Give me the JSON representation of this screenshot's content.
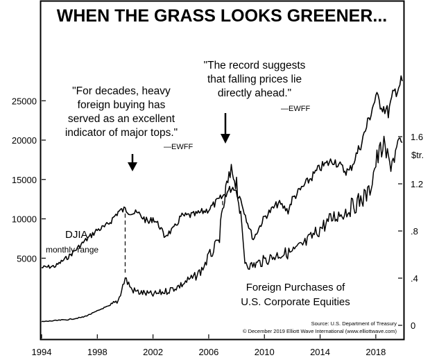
{
  "chart_data": {
    "type": "line",
    "title": "WHEN THE GRASS LOOKS GREENER...",
    "x_axis": {
      "ticks": [
        "1994",
        "1998",
        "2002",
        "2006",
        "2010",
        "2014",
        "2018"
      ],
      "range": [
        1994,
        2019.9
      ]
    },
    "y_left": {
      "ticks": [
        "5000",
        "10000",
        "15000",
        "20000",
        "25000"
      ],
      "range": [
        0,
        29000
      ]
    },
    "y_right": {
      "unit_label": "$tr.",
      "ticks": [
        "0",
        ".4",
        ".8",
        "1.2",
        "1.6"
      ],
      "range": [
        0,
        1.8
      ]
    },
    "series": [
      {
        "name": "DJIA monthly range",
        "axis": "left",
        "x": [
          1994.0,
          1995.0,
          1996.0,
          1997.0,
          1998.0,
          1998.6,
          1999.0,
          1999.5,
          2000.0,
          2000.5,
          2001.0,
          2001.7,
          2002.0,
          2002.5,
          2002.8,
          2003.5,
          2004.0,
          2005.0,
          2006.0,
          2007.0,
          2007.5,
          2007.8,
          2008.3,
          2008.8,
          2009.2,
          2010.0,
          2011.0,
          2011.7,
          2012.0,
          2013.0,
          2014.0,
          2015.0,
          2015.7,
          2016.1,
          2017.0,
          2018.0,
          2018.4,
          2018.9,
          2019.3,
          2019.9
        ],
        "y": [
          3800,
          4000,
          5300,
          7000,
          8600,
          9000,
          9800,
          10900,
          11200,
          10800,
          10600,
          9500,
          10100,
          9000,
          7800,
          8700,
          10300,
          10500,
          11200,
          12800,
          13700,
          14100,
          12500,
          9500,
          7400,
          10200,
          12000,
          11000,
          12500,
          14500,
          16500,
          17500,
          16200,
          16000,
          19800,
          25500,
          24500,
          23500,
          26000,
          27500
        ]
      },
      {
        "name": "Foreign Purchases of U.S. Corporate Equities",
        "axis": "right",
        "x": [
          1994.0,
          1995.0,
          1996.0,
          1997.0,
          1997.8,
          1998.5,
          1999.0,
          1999.5,
          2000.0,
          2000.5,
          2001.0,
          2002.0,
          2003.0,
          2004.0,
          2004.5,
          2005.0,
          2005.5,
          2006.0,
          2006.7,
          2007.0,
          2007.3,
          2007.7,
          2008.0,
          2008.3,
          2008.6,
          2009.0,
          2010.0,
          2011.0,
          2012.0,
          2013.0,
          2014.0,
          2015.0,
          2016.0,
          2017.0,
          2017.5,
          2018.0,
          2018.5,
          2019.0,
          2019.5,
          2019.9
        ],
        "y": [
          0.03,
          0.04,
          0.05,
          0.07,
          0.11,
          0.15,
          0.17,
          0.21,
          0.4,
          0.3,
          0.28,
          0.26,
          0.29,
          0.34,
          0.38,
          0.41,
          0.47,
          0.58,
          0.7,
          0.95,
          1.18,
          1.3,
          1.22,
          0.9,
          0.55,
          0.5,
          0.55,
          0.6,
          0.62,
          0.7,
          0.82,
          0.92,
          0.98,
          1.07,
          1.12,
          1.38,
          1.52,
          1.37,
          1.47,
          1.55
        ]
      }
    ],
    "markers": [
      2000.0,
      2007.0
    ],
    "annotations": {
      "quote1": [
        "\"For decades, heavy",
        "foreign buying has",
        "served as an excellent",
        "indicator of major tops.\""
      ],
      "quote1_attr": "—EWFF",
      "quote2": [
        "\"The record suggests",
        "that falling prices lie",
        "directly ahead.\""
      ],
      "quote2_attr": "—EWFF",
      "djia_label": "DJIA",
      "djia_sublabel": "monthly range",
      "foreign_label": [
        "Foreign Purchases of",
        "U.S. Corporate Equities"
      ],
      "source": "Source: U.S. Department of Treasury",
      "copyright": "© December 2019 Elliott Wave International (www.elliottwave.com)"
    }
  }
}
